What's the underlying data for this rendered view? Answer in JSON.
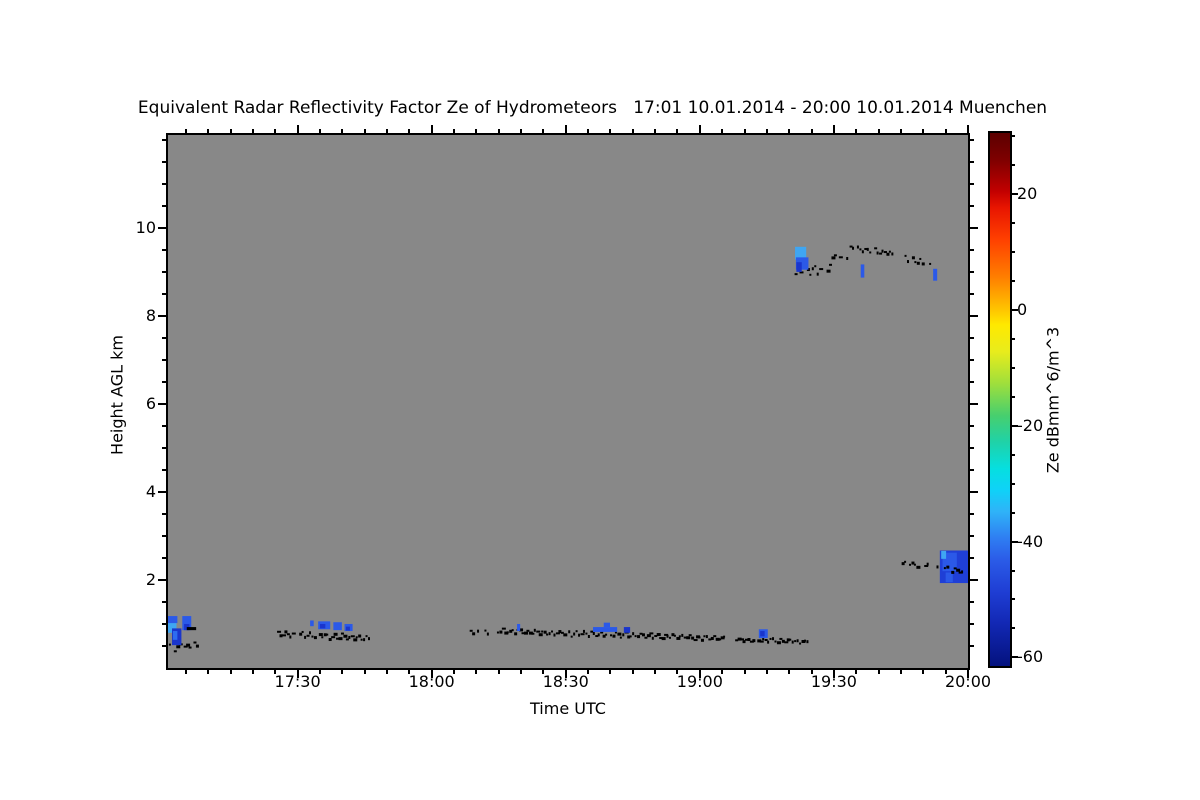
{
  "chart_data": {
    "type": "heatmap",
    "title": "Equivalent Radar Reflectivity Factor Ze of Hydrometeors   17:01 10.01.2014 - 20:00 10.01.2014 Muenchen",
    "xlabel": "Time UTC",
    "ylabel": "Height AGL km",
    "plot_background": "#888888",
    "no_echo_color": "#888888",
    "x_axis": {
      "start": "17:01",
      "end": "20:00",
      "start_min": 1,
      "end_min": 180,
      "minor_step_min": 5,
      "major_ticks": [
        {
          "min": 30,
          "label": "17:30"
        },
        {
          "min": 60,
          "label": "18:00"
        },
        {
          "min": 90,
          "label": "18:30"
        },
        {
          "min": 120,
          "label": "19:00"
        },
        {
          "min": 150,
          "label": "19:30"
        },
        {
          "min": 180,
          "label": "20:00"
        }
      ]
    },
    "y_axis": {
      "min_km": 0,
      "max_km": 12.11,
      "minor_step_km": 0.5,
      "major_ticks": [
        {
          "km": 2,
          "label": "2"
        },
        {
          "km": 4,
          "label": "4"
        },
        {
          "km": 6,
          "label": "6"
        },
        {
          "km": 8,
          "label": "8"
        },
        {
          "km": 10,
          "label": "10"
        }
      ]
    },
    "colorbar": {
      "label": "Ze dBmm^6/m^3",
      "min": -61.5,
      "max": 30.6,
      "minor_step": 5,
      "major_ticks": [
        {
          "value": 20,
          "label": "20"
        },
        {
          "value": 0,
          "label": "0"
        },
        {
          "value": -20,
          "label": "-20"
        },
        {
          "value": -40,
          "label": "-40"
        },
        {
          "value": -60,
          "label": "-60"
        }
      ],
      "gradient": [
        [
          0.0,
          "#5c0000"
        ],
        [
          0.05,
          "#7e0000"
        ],
        [
          0.11,
          "#c30000"
        ],
        [
          0.14,
          "#e81500"
        ],
        [
          0.2,
          "#ff4000"
        ],
        [
          0.27,
          "#ff7e00"
        ],
        [
          0.33,
          "#ffc300"
        ],
        [
          0.36,
          "#ffe900"
        ],
        [
          0.41,
          "#e8ec1c"
        ],
        [
          0.47,
          "#9fdf3c"
        ],
        [
          0.53,
          "#47cf6e"
        ],
        [
          0.58,
          "#1fd2a8"
        ],
        [
          0.63,
          "#06dfe0"
        ],
        [
          0.67,
          "#0fd2f8"
        ],
        [
          0.71,
          "#2fb3f8"
        ],
        [
          0.76,
          "#2f7ef2"
        ],
        [
          0.8,
          "#2b5ce8"
        ],
        [
          0.86,
          "#1f3ed4"
        ],
        [
          0.92,
          "#1228b4"
        ],
        [
          1.0,
          "#04127e"
        ]
      ]
    },
    "echo_patches": [
      {
        "t": 1.0,
        "dt": 1.9,
        "h": 0.8,
        "dh": 0.27,
        "c": "#3fa6f2",
        "layer": 1
      },
      {
        "t": 1.0,
        "dt": 2.1,
        "h": 1.02,
        "dh": 0.16,
        "c": "#2b59e8",
        "layer": 1
      },
      {
        "t": 1.9,
        "dt": 2.1,
        "h": 0.52,
        "dh": 0.38,
        "c": "#1a35cc",
        "layer": 1
      },
      {
        "t": 2.1,
        "dt": 1.0,
        "h": 0.64,
        "dh": 0.2,
        "c": "#2e6cf0",
        "layer": 1
      },
      {
        "t": 4.2,
        "dt": 2.0,
        "h": 0.86,
        "dh": 0.32,
        "c": "#2b59e8",
        "layer": 1
      },
      {
        "t": 4.6,
        "dt": 1.2,
        "h": 0.86,
        "dh": 0.14,
        "c": "#1a35cc",
        "layer": 1
      },
      {
        "t": 5.2,
        "dt": 2.1,
        "h": 0.86,
        "dh": 0.07,
        "c": "#000000",
        "layer": 2
      },
      {
        "t": 32.8,
        "dt": 0.8,
        "h": 0.95,
        "dh": 0.13,
        "c": "#2b59e8",
        "layer": 1
      },
      {
        "t": 34.6,
        "dt": 2.7,
        "h": 0.88,
        "dh": 0.18,
        "c": "#2b59e8",
        "layer": 1
      },
      {
        "t": 35.0,
        "dt": 1.2,
        "h": 0.9,
        "dh": 0.1,
        "c": "#1a35cc",
        "layer": 1
      },
      {
        "t": 38.0,
        "dt": 1.9,
        "h": 0.86,
        "dh": 0.18,
        "c": "#2b59e8",
        "layer": 1
      },
      {
        "t": 40.5,
        "dt": 1.8,
        "h": 0.84,
        "dh": 0.16,
        "c": "#2b59e8",
        "layer": 1
      },
      {
        "t": 40.8,
        "dt": 0.9,
        "h": 0.85,
        "dh": 0.09,
        "c": "#1a35cc",
        "layer": 1
      },
      {
        "t": 79.1,
        "dt": 0.7,
        "h": 0.84,
        "dh": 0.16,
        "c": "#2b59e8",
        "layer": 1
      },
      {
        "t": 96.1,
        "dt": 5.4,
        "h": 0.82,
        "dh": 0.11,
        "c": "#2b59e8",
        "layer": 1
      },
      {
        "t": 98.5,
        "dt": 1.4,
        "h": 0.93,
        "dh": 0.1,
        "c": "#2b59e8",
        "layer": 1
      },
      {
        "t": 103.0,
        "dt": 1.4,
        "h": 0.8,
        "dh": 0.13,
        "c": "#1a35cc",
        "layer": 1
      },
      {
        "t": 133.2,
        "dt": 2.0,
        "h": 0.68,
        "dh": 0.2,
        "c": "#2b59e8",
        "layer": 1
      },
      {
        "t": 133.5,
        "dt": 1.0,
        "h": 0.72,
        "dh": 0.12,
        "c": "#1a35cc",
        "layer": 1
      },
      {
        "t": 141.3,
        "dt": 2.5,
        "h": 9.28,
        "dh": 0.29,
        "c": "#3fa6f2",
        "layer": 1
      },
      {
        "t": 141.5,
        "dt": 2.8,
        "h": 9.05,
        "dh": 0.28,
        "c": "#2b59e8",
        "layer": 1
      },
      {
        "t": 141.6,
        "dt": 1.2,
        "h": 9.0,
        "dh": 0.22,
        "c": "#1a35cc",
        "layer": 1
      },
      {
        "t": 156.0,
        "dt": 0.8,
        "h": 8.87,
        "dh": 0.3,
        "c": "#2b59e8",
        "layer": 1
      },
      {
        "t": 172.2,
        "dt": 0.9,
        "h": 8.8,
        "dh": 0.27,
        "c": "#2b59e8",
        "layer": 1
      },
      {
        "t": 173.7,
        "dt": 6.3,
        "h": 1.93,
        "dh": 0.74,
        "c": "#1f3fd6",
        "layer": 1
      },
      {
        "t": 174.3,
        "dt": 3.2,
        "h": 2.2,
        "dh": 0.42,
        "c": "#2b59e8",
        "layer": 1
      },
      {
        "t": 175.0,
        "dt": 1.6,
        "h": 1.95,
        "dh": 0.22,
        "c": "#2b59e8",
        "layer": 1
      },
      {
        "t": 174.0,
        "dt": 1.1,
        "h": 2.48,
        "dh": 0.18,
        "c": "#3fa6f2",
        "layer": 1
      }
    ],
    "speckle_segments": [
      {
        "t0": 1.2,
        "t1": 7.4,
        "h0": 0.48,
        "h1": 0.52,
        "amp": 0.07,
        "density": 0.85,
        "seed": 1,
        "layer": 0
      },
      {
        "t0": 25.4,
        "t1": 46.2,
        "h0": 0.8,
        "h1": 0.7,
        "amp": 0.055,
        "density": 0.88,
        "seed": 2,
        "layer": 0
      },
      {
        "t0": 68.5,
        "t1": 73.2,
        "h0": 0.84,
        "h1": 0.82,
        "amp": 0.03,
        "density": 0.55,
        "seed": 3,
        "layer": 0
      },
      {
        "t0": 74.6,
        "t1": 125.3,
        "h0": 0.86,
        "h1": 0.7,
        "amp": 0.05,
        "density": 0.97,
        "seed": 4,
        "layer": 0
      },
      {
        "t0": 127.9,
        "t1": 144.2,
        "h0": 0.68,
        "h1": 0.62,
        "amp": 0.035,
        "density": 0.95,
        "seed": 5,
        "layer": 0
      },
      {
        "t0": 141.2,
        "t1": 149.3,
        "h0": 9.02,
        "h1": 9.12,
        "amp": 0.1,
        "density": 0.8,
        "seed": 6,
        "layer": 0
      },
      {
        "t0": 147.8,
        "t1": 153.2,
        "h0": 9.3,
        "h1": 9.4,
        "amp": 0.06,
        "density": 0.7,
        "seed": 7,
        "layer": 0
      },
      {
        "t0": 153.5,
        "t1": 163.0,
        "h0": 9.58,
        "h1": 9.44,
        "amp": 0.04,
        "density": 0.92,
        "seed": 8,
        "layer": 0
      },
      {
        "t0": 165.8,
        "t1": 171.6,
        "h0": 9.34,
        "h1": 9.16,
        "amp": 0.07,
        "density": 0.6,
        "seed": 9,
        "layer": 0
      },
      {
        "t0": 164.6,
        "t1": 168.7,
        "h0": 2.42,
        "h1": 2.36,
        "amp": 0.04,
        "density": 0.7,
        "seed": 10,
        "layer": 0
      },
      {
        "t0": 170.2,
        "t1": 173.6,
        "h0": 2.38,
        "h1": 2.28,
        "amp": 0.05,
        "density": 0.75,
        "seed": 11,
        "layer": 0
      },
      {
        "t0": 174.6,
        "t1": 178.6,
        "h0": 2.3,
        "h1": 2.22,
        "amp": 0.06,
        "density": 0.9,
        "seed": 12,
        "layer": 2
      }
    ]
  }
}
